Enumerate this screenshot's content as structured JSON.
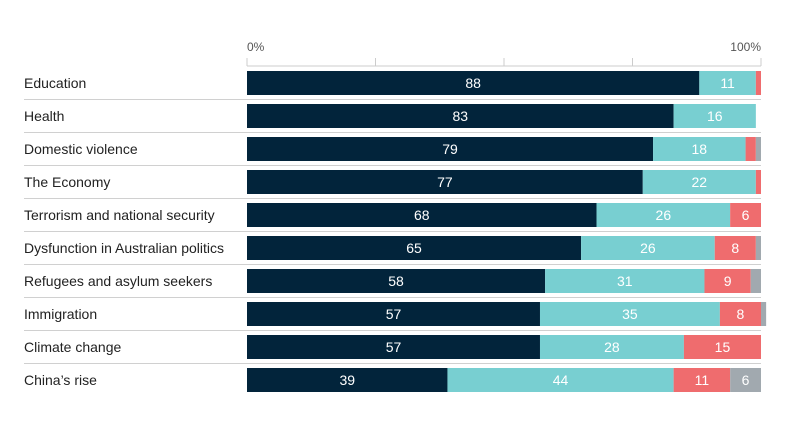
{
  "chart_data": {
    "type": "bar",
    "orientation": "horizontal",
    "stacked": true,
    "xlim": [
      0,
      100
    ],
    "axis_labels": {
      "start": "0%",
      "end": "100%"
    },
    "categories": [
      "Education",
      "Health",
      "Domestic violence",
      "The Economy",
      "Terrorism and national security",
      "Dysfunction in Australian politics",
      "Refugees and asylum seekers",
      "Immigration",
      "Climate change",
      "China’s rise"
    ],
    "series": [
      {
        "color": "#02243b",
        "label_color": "#ffffff",
        "values": [
          88,
          83,
          79,
          77,
          68,
          65,
          58,
          57,
          57,
          39
        ]
      },
      {
        "color": "#78cfd1",
        "label_color": "#ffffff",
        "values": [
          11,
          16,
          18,
          22,
          26,
          26,
          31,
          35,
          28,
          44
        ]
      },
      {
        "color": "#ef6c6e",
        "label_color": "#ffffff",
        "values": [
          1,
          0,
          2,
          1,
          6,
          8,
          9,
          8,
          15,
          11
        ]
      },
      {
        "color": "#a1a9af",
        "label_color": "#ffffff",
        "values": [
          0,
          0,
          1,
          0,
          0,
          1,
          2,
          1,
          0,
          6
        ]
      }
    ],
    "label_min_value": 5,
    "legend": "none"
  }
}
